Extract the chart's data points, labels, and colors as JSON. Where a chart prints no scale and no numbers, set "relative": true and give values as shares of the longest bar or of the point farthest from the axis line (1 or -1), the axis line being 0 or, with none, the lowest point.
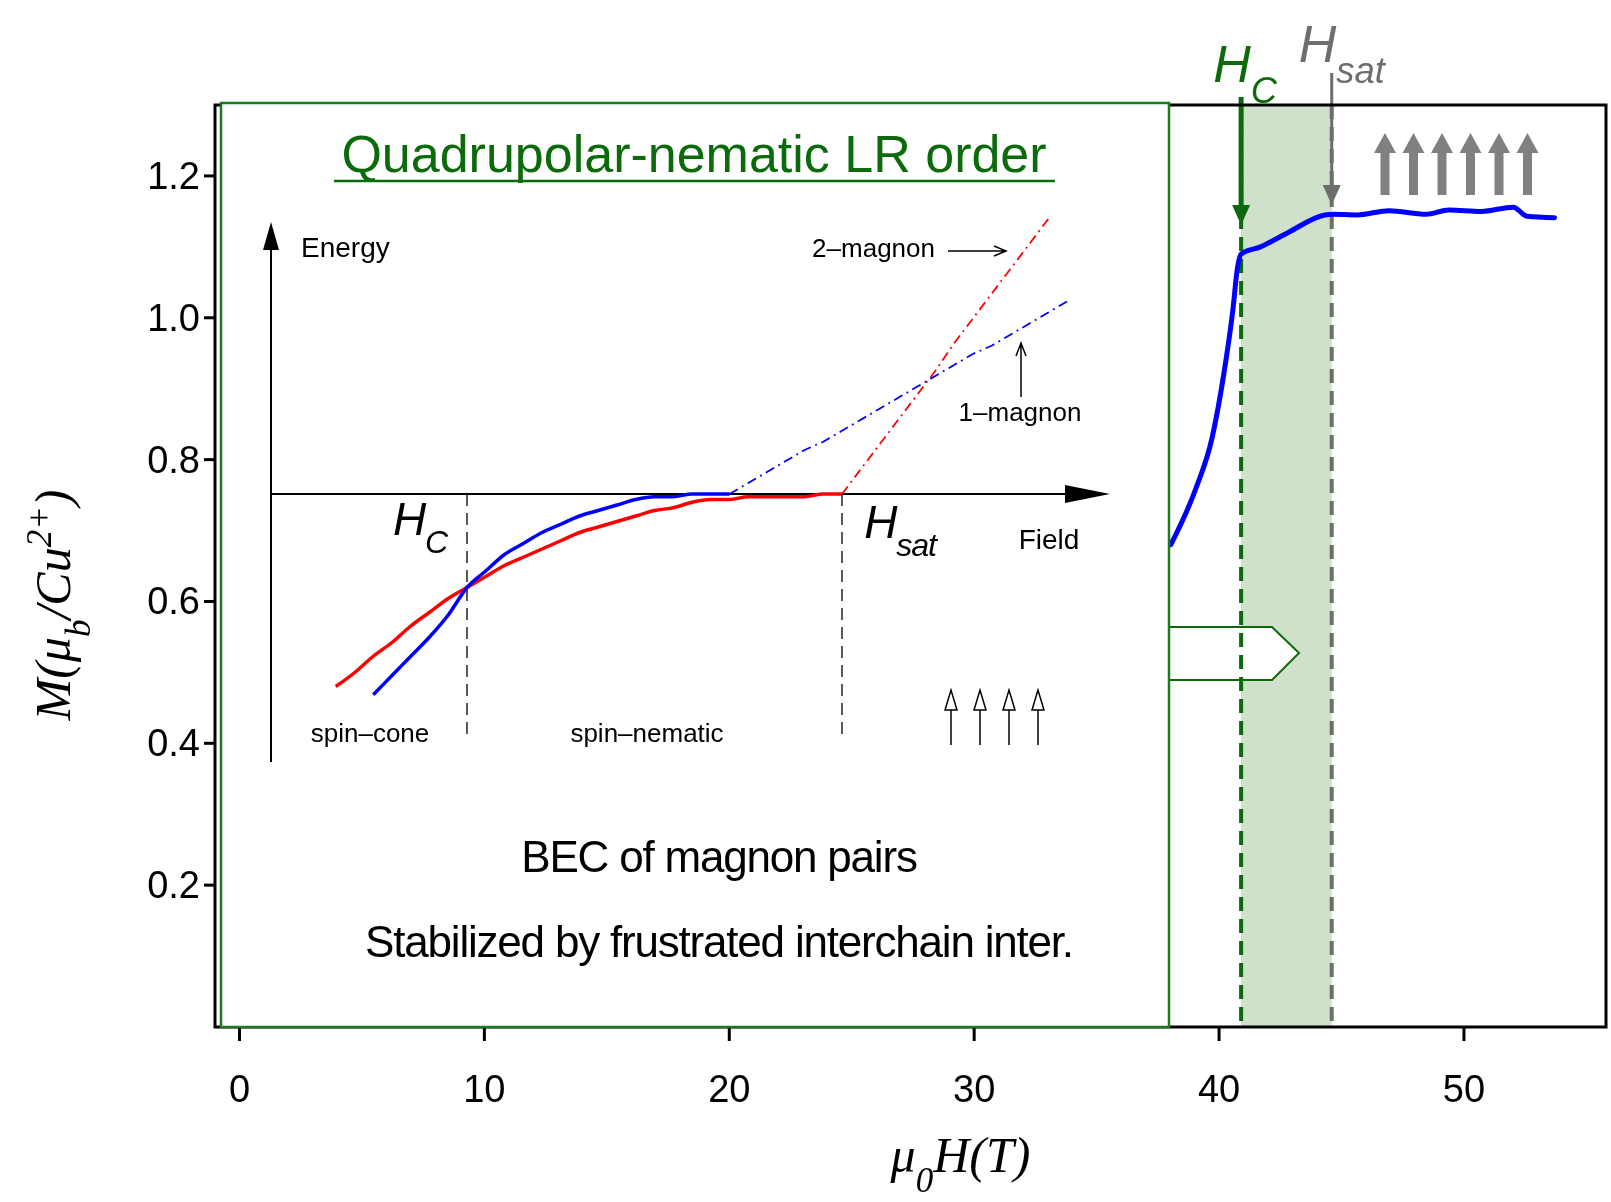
{
  "chart_data": [
    {
      "type": "line",
      "xlabel": "μ$_{0}$H(T)",
      "ylabel": "M(μ$_{b}$/Cu$^{2+}$)",
      "x": [
        38.03,
        39.06,
        39.71,
        40.19,
        40.56,
        40.75,
        40.9,
        41.69,
        42.81,
        44.32,
        44.69,
        45.63,
        46.94,
        48.45,
        49.39,
        50.7,
        52.01,
        52.58,
        53.7
      ],
      "series": [
        {
          "color": "#0000ff",
          "values": [
            0.68,
            0.76,
            0.83,
            0.92,
            1.01,
            1.07,
            1.09,
            1.1,
            1.12,
            1.145,
            1.146,
            1.145,
            1.151,
            1.146,
            1.152,
            1.15,
            1.156,
            1.143,
            1.141
          ]
        }
      ],
      "xlim": [
        -1,
        55.8
      ],
      "ylim": [
        0,
        1.3
      ],
      "xticks": [
        0,
        10,
        20,
        30,
        40,
        50
      ],
      "yticks": [
        0.2,
        0.4,
        0.6,
        0.8,
        {
          "value": 1,
          "label": "1.0"
        },
        1.2
      ],
      "ref_lines": [
        {
          "axis": "x",
          "value": 40.9,
          "label": "H$_{C}$",
          "color": "#0b6b0b",
          "line_style": "dashed"
        },
        {
          "axis": "x",
          "value": 44.6,
          "label": "H$_{sat}$",
          "color": "#6e6e6e",
          "line_style": "dashed"
        }
      ],
      "bands": [
        {
          "axis": "x",
          "from": 40.9,
          "to": 44.6,
          "color": "#cfe0cb"
        }
      ]
    },
    {
      "type": "line",
      "relative": true,
      "title": "Quadrupolar-nematic LR order",
      "xlabel": "Field",
      "ylabel": "Energy",
      "categories": [
        null,
        null,
        null,
        null,
        null,
        null,
        null,
        null,
        null,
        null,
        null,
        null,
        null,
        null,
        null,
        null,
        null,
        null,
        null,
        null,
        null,
        null,
        null,
        null,
        null,
        null,
        null,
        null,
        null,
        null,
        null,
        null,
        null,
        null,
        null,
        null,
        null,
        null,
        null,
        null,
        null,
        null
      ],
      "series": [
        {
          "color": "#ff0000",
          "values": [
            null,
            -0.7,
            -0.65,
            -0.59,
            -0.54,
            -0.48,
            -0.43,
            -0.38,
            -0.34,
            -0.3,
            -0.26,
            -0.23,
            -0.2,
            -0.17,
            -0.14,
            -0.12,
            -0.1,
            -0.08,
            -0.06,
            -0.05,
            -0.03,
            -0.02,
            -0.02,
            -0.01,
            -0.01,
            -0.01,
            -0.01,
            0,
            0,
            null,
            null,
            null,
            null,
            null,
            null,
            null,
            null,
            null,
            null,
            null,
            null,
            null
          ]
        },
        {
          "color": "#0000ff",
          "values": [
            null,
            null,
            null,
            -0.73,
            -0.66,
            -0.59,
            -0.52,
            -0.44,
            -0.34,
            -0.28,
            -0.22,
            -0.18,
            -0.14,
            -0.11,
            -0.08,
            -0.06,
            -0.04,
            -0.02,
            -0.01,
            -0.01,
            0,
            0,
            0,
            null,
            null,
            null,
            null,
            null,
            null,
            null,
            null,
            null,
            null,
            null,
            null,
            null,
            null,
            null,
            null,
            null,
            null,
            null
          ]
        },
        {
          "name": "2–magnon",
          "color": "#ff0000",
          "line_style": "dashdot",
          "values": [
            null,
            null,
            null,
            null,
            null,
            null,
            null,
            null,
            null,
            null,
            null,
            null,
            null,
            null,
            null,
            null,
            null,
            null,
            null,
            null,
            null,
            null,
            null,
            null,
            null,
            null,
            null,
            null,
            0,
            0.09,
            0.18,
            0.27,
            0.36,
            0.45,
            0.55,
            0.64,
            0.73,
            0.82,
            0.91,
            1.0,
            null,
            null
          ]
        },
        {
          "name": "1–magnon",
          "color": "#0000ff",
          "line_style": "dashdot",
          "values": [
            null,
            null,
            null,
            null,
            null,
            null,
            null,
            null,
            null,
            null,
            null,
            null,
            null,
            null,
            null,
            null,
            null,
            null,
            null,
            null,
            null,
            null,
            0,
            0.04,
            0.08,
            0.12,
            0.16,
            0.19,
            0.23,
            0.27,
            0.31,
            0.35,
            0.39,
            0.43,
            0.47,
            0.51,
            0.54,
            0.58,
            0.62,
            0.66,
            0.7,
            null
          ]
        }
      ],
      "annotations": [
        "H$_{C}$",
        "H$_{sat}$",
        "spin–cone",
        "spin–nematic",
        "BEC of magnon pairs",
        "Stabilized by frustrated interchain inter."
      ]
    }
  ]
}
